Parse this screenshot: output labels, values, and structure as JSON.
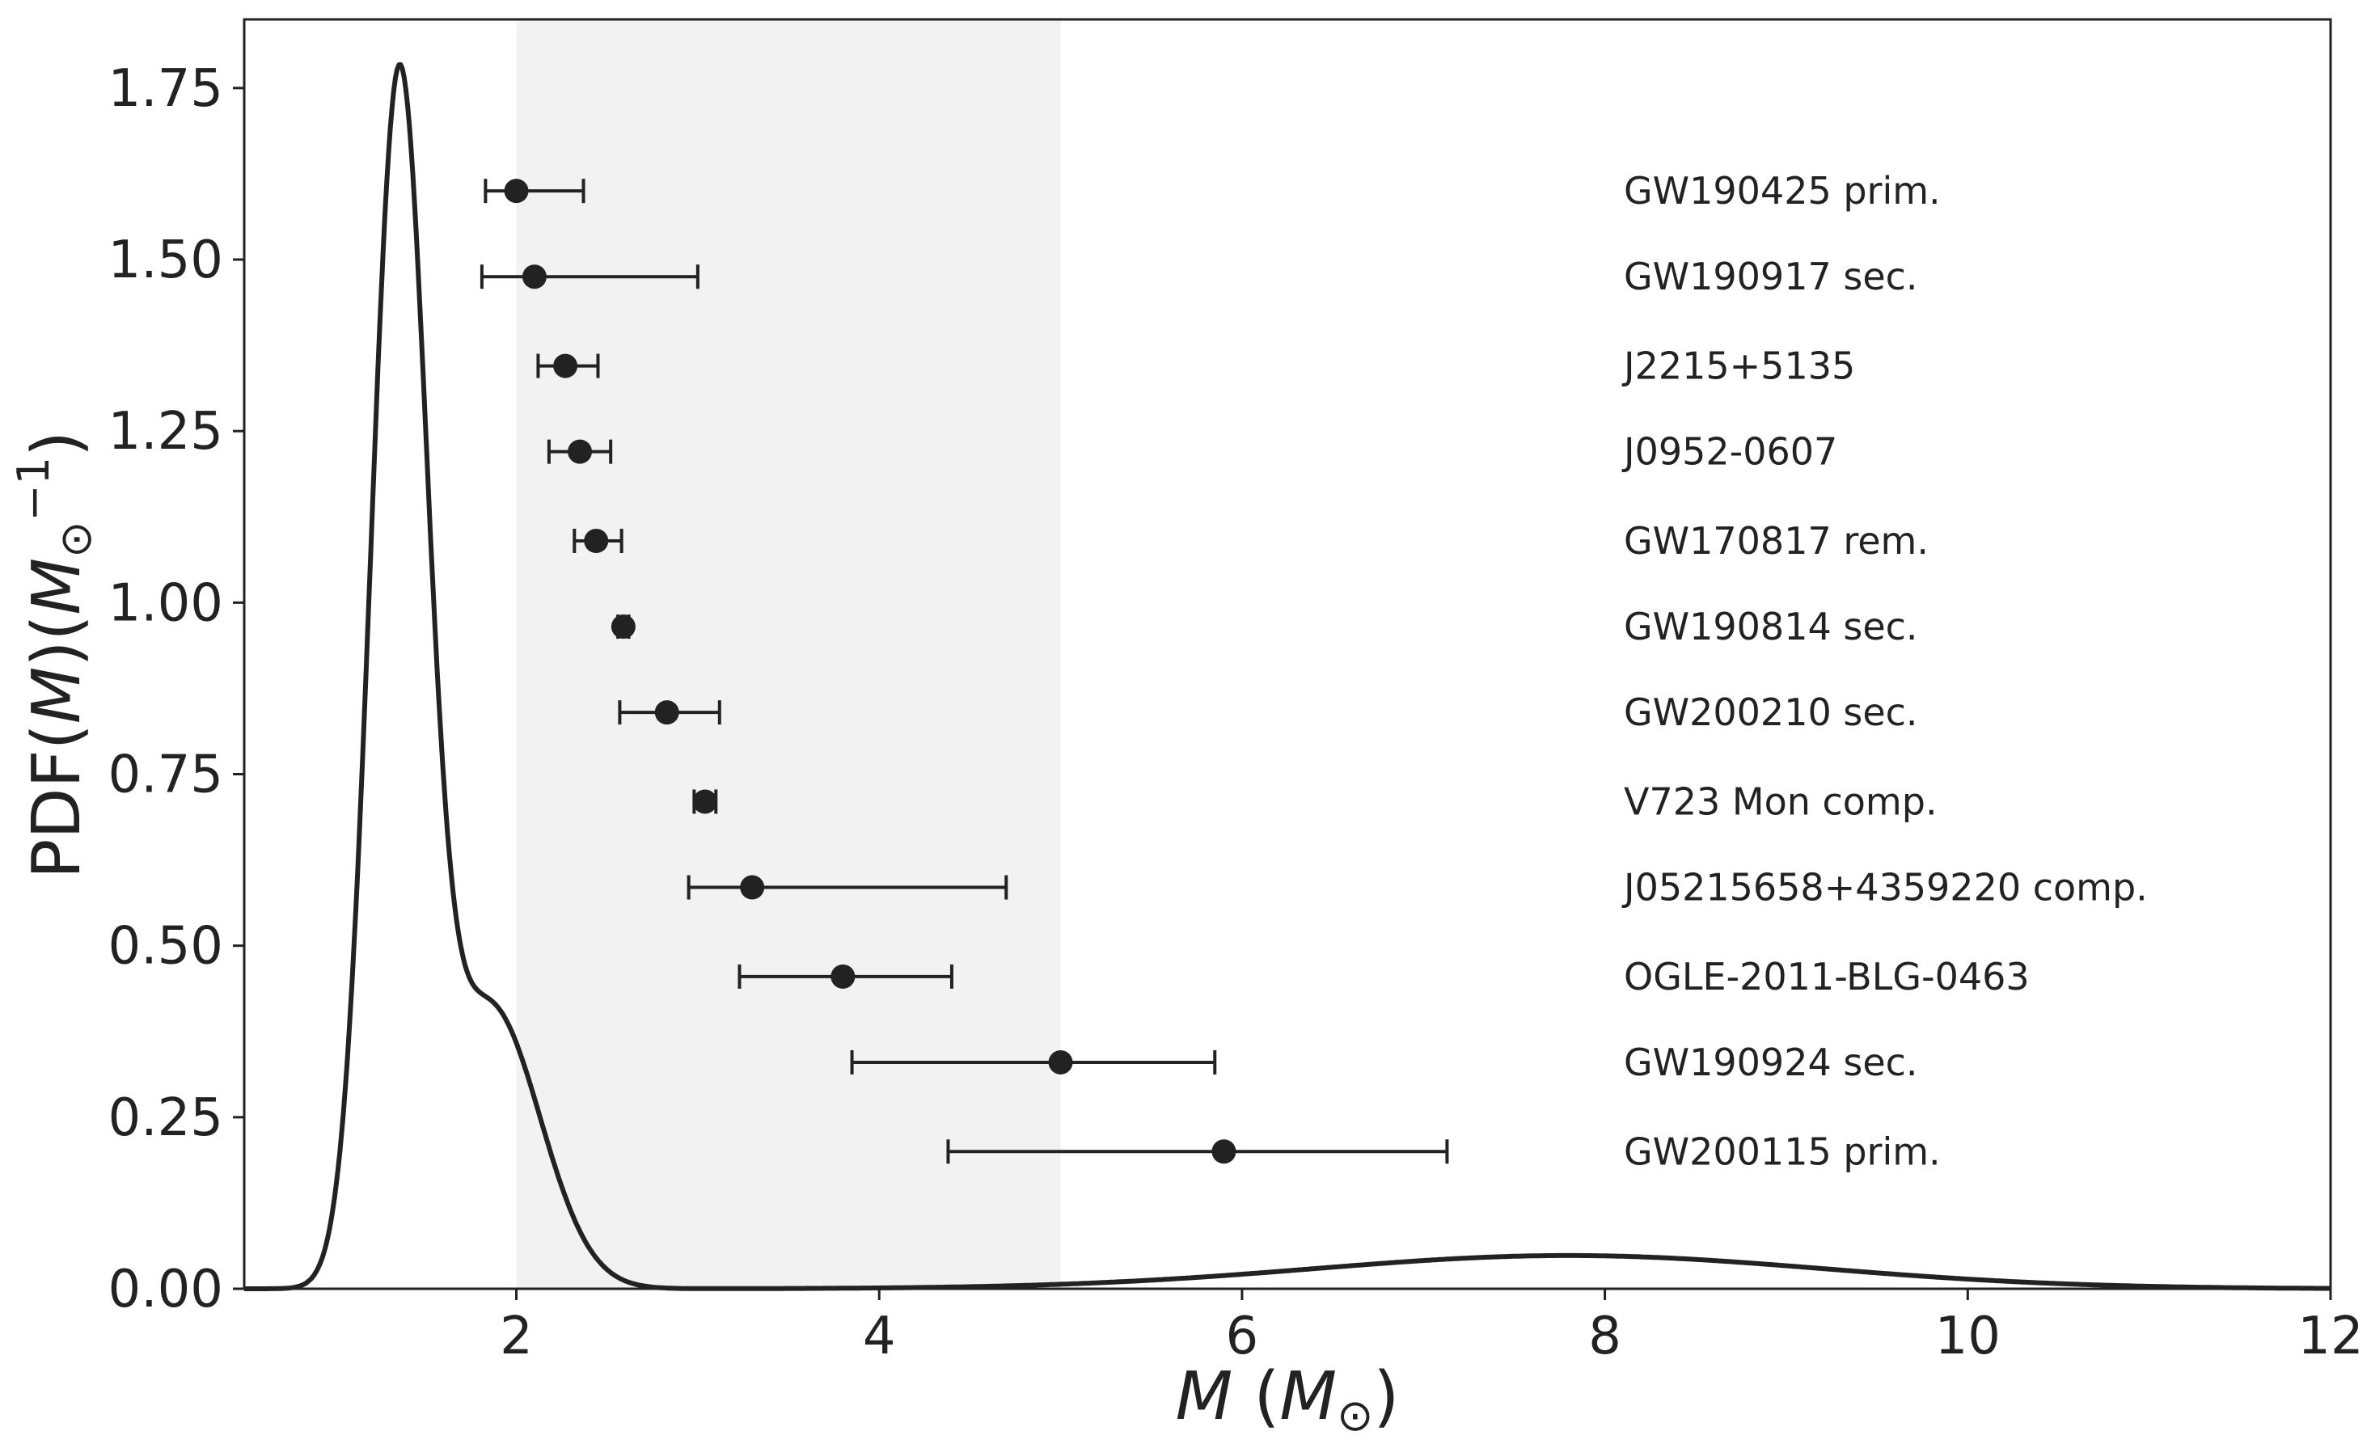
{
  "chart_data": {
    "type": "line",
    "title": "",
    "xlabel_parts": {
      "var": "M",
      "open": " (",
      "sym": "M",
      "sub": "⊙",
      "close": ")"
    },
    "ylabel_parts": {
      "pre": "PDF(",
      "var": "M",
      "mid": ")(",
      "sym": "M",
      "sub": "⊙",
      "sup": "−1",
      "close": ")"
    },
    "xlim": [
      0.5,
      12
    ],
    "ylim": [
      0,
      1.85
    ],
    "xticks": [
      2,
      4,
      6,
      8,
      10,
      12
    ],
    "xtick_labels": [
      "2",
      "4",
      "6",
      "8",
      "10",
      "12"
    ],
    "yticks": [
      0,
      0.25,
      0.5,
      0.75,
      1.0,
      1.25,
      1.5,
      1.75
    ],
    "ytick_labels": [
      "0.00",
      "0.25",
      "0.50",
      "0.75",
      "1.00",
      "1.25",
      "1.50",
      "1.75"
    ],
    "shaded_region": {
      "x_from": 2,
      "x_to": 5,
      "color": "#f2f2f2"
    },
    "line_color": "#222222",
    "pdf_curve": {
      "name": "PDF(M)",
      "components": [
        {
          "weight": 0.66,
          "mean": 1.35,
          "sd": 0.155
        },
        {
          "weight": 0.29,
          "mean": 1.85,
          "sd": 0.28
        },
        {
          "weight": 0.17,
          "mean": 7.8,
          "sd": 1.4
        }
      ]
    },
    "objects": [
      {
        "name": "GW190425 prim.",
        "y": 1.6,
        "mass": 2.0,
        "low": 1.83,
        "high": 2.37
      },
      {
        "name": "GW190917 sec.",
        "y": 1.475,
        "mass": 2.1,
        "low": 1.81,
        "high": 3.0
      },
      {
        "name": "J2215+5135",
        "y": 1.345,
        "mass": 2.27,
        "low": 2.12,
        "high": 2.45
      },
      {
        "name": "J0952-0607",
        "y": 1.22,
        "mass": 2.35,
        "low": 2.18,
        "high": 2.52
      },
      {
        "name": "GW170817 rem.",
        "y": 1.09,
        "mass": 2.44,
        "low": 2.32,
        "high": 2.58
      },
      {
        "name": "GW190814 sec.",
        "y": 0.965,
        "mass": 2.59,
        "low": 2.56,
        "high": 2.62
      },
      {
        "name": "GW200210 sec.",
        "y": 0.84,
        "mass": 2.83,
        "low": 2.57,
        "high": 3.12
      },
      {
        "name": "V723 Mon comp.",
        "y": 0.71,
        "mass": 3.04,
        "low": 2.98,
        "high": 3.1
      },
      {
        "name": "J05215658+4359220 comp.",
        "y": 0.585,
        "mass": 3.3,
        "low": 2.95,
        "high": 4.7
      },
      {
        "name": "OGLE-2011-BLG-0463",
        "y": 0.455,
        "mass": 3.8,
        "low": 3.23,
        "high": 4.4
      },
      {
        "name": "GW190924 sec.",
        "y": 0.33,
        "mass": 5.0,
        "low": 3.85,
        "high": 5.85
      },
      {
        "name": "GW200115 prim.",
        "y": 0.2,
        "mass": 5.9,
        "low": 4.38,
        "high": 7.13
      }
    ]
  }
}
